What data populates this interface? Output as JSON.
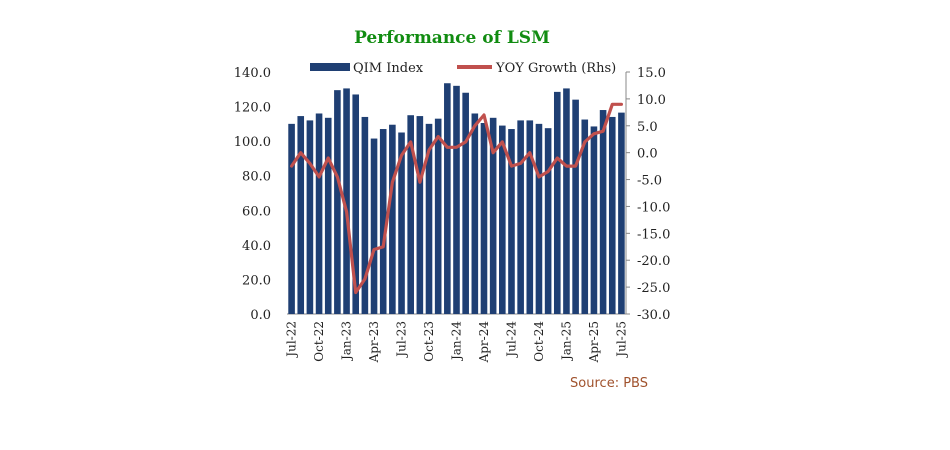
{
  "chart_data": {
    "type": "bar+line",
    "title": "Performance of LSM",
    "source": "Source: PBS",
    "categories": [
      "Jul-22",
      "Aug-22",
      "Sep-22",
      "Oct-22",
      "Nov-22",
      "Dec-22",
      "Jan-23",
      "Feb-23",
      "Mar-23",
      "Apr-23",
      "May-23",
      "Jun-23",
      "Jul-23",
      "Aug-23",
      "Sep-23",
      "Oct-23",
      "Nov-23",
      "Dec-23",
      "Jan-24",
      "Feb-24",
      "Mar-24",
      "Apr-24",
      "May-24",
      "Jun-24",
      "Jul-24",
      "Aug-24",
      "Sep-24",
      "Oct-24",
      "Nov-24",
      "Dec-24",
      "Jan-25",
      "Feb-25",
      "Mar-25",
      "Apr-25",
      "May-25",
      "Jun-25",
      "Jul-25"
    ],
    "tick_labels": [
      "Jul-22",
      "Oct-22",
      "Jan-23",
      "Apr-23",
      "Jul-23",
      "Oct-23",
      "Jan-24",
      "Apr-24",
      "Jul-24",
      "Oct-24",
      "Jan-25",
      "Apr-25",
      "Jul-25"
    ],
    "series": [
      {
        "name": "QIM Index",
        "type": "bar",
        "axis": "left",
        "values": [
          110.0,
          114.5,
          112.0,
          116.0,
          113.5,
          129.5,
          130.5,
          127.0,
          114.0,
          101.5,
          107.0,
          109.5,
          105.0,
          115.0,
          114.5,
          110.0,
          113.0,
          133.5,
          132.0,
          128.0,
          116.0,
          110.5,
          113.5,
          109.0,
          107.0,
          112.0,
          112.0,
          110.0,
          107.5,
          128.5,
          130.5,
          124.0,
          112.5,
          108.5,
          118.0,
          114.0,
          116.5
        ]
      },
      {
        "name": "YOY Growth (Rhs)",
        "type": "line",
        "axis": "right",
        "values": [
          -2.5,
          0.0,
          -2.0,
          -4.5,
          -1.0,
          -4.5,
          -11.0,
          -26.0,
          -23.5,
          -18.0,
          -17.5,
          -5.5,
          -0.5,
          2.0,
          -5.5,
          0.5,
          3.0,
          1.0,
          1.0,
          2.0,
          5.0,
          7.0,
          0.0,
          2.0,
          -2.5,
          -2.0,
          0.0,
          -4.5,
          -3.5,
          -1.0,
          -2.5,
          -2.5,
          2.0,
          3.5,
          4.0,
          9.0,
          9.0
        ]
      }
    ],
    "y_left": {
      "min": 0,
      "max": 140,
      "step": 20,
      "ticks": [
        "0.0",
        "20.0",
        "40.0",
        "60.0",
        "80.0",
        "100.0",
        "120.0",
        "140.0"
      ]
    },
    "y_right": {
      "min": -30,
      "max": 15,
      "step": 5,
      "ticks": [
        "-30.0",
        "-25.0",
        "-20.0",
        "-15.0",
        "-10.0",
        "-5.0",
        "0.0",
        "5.0",
        "10.0",
        "15.0"
      ]
    },
    "legend": {
      "placement": "top-center"
    },
    "grid": false,
    "colors": {
      "bar": "#1f3f73",
      "line": "#c0504d",
      "title": "#118c11",
      "source": "#a0522d"
    }
  }
}
